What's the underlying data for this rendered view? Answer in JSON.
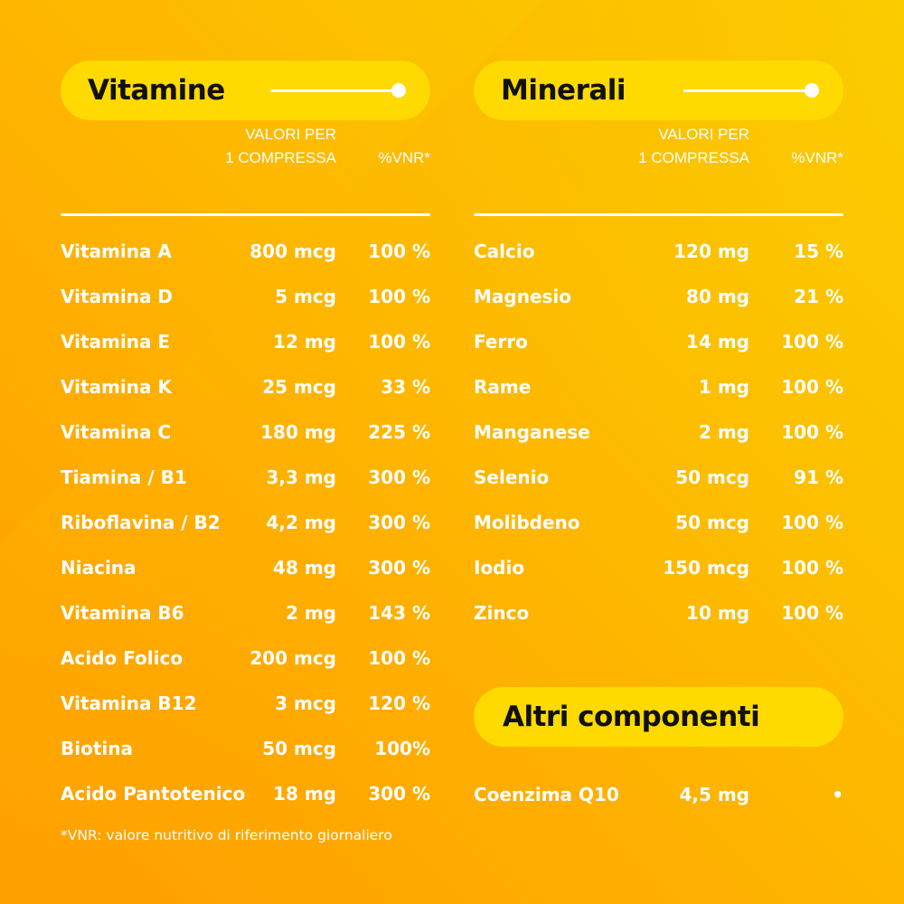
{
  "vitamine": {
    "title": "Vitamine",
    "header": {
      "valori_line1": "VALORI PER",
      "valori_line2": "1 COMPRESSA",
      "vnr": "%VNR*"
    },
    "rows": [
      {
        "name": "Vitamina A",
        "amount": "800 mcg",
        "vnr": "100 %"
      },
      {
        "name": "Vitamina D",
        "amount": "5 mcg",
        "vnr": "100 %"
      },
      {
        "name": "Vitamina E",
        "amount": "12 mg",
        "vnr": "100 %"
      },
      {
        "name": "Vitamina K",
        "amount": "25 mcg",
        "vnr": "33 %"
      },
      {
        "name": "Vitamina C",
        "amount": "180 mg",
        "vnr": "225 %"
      },
      {
        "name": "Tiamina / B1",
        "amount": "3,3 mg",
        "vnr": "300 %"
      },
      {
        "name": "Riboflavina / B2",
        "amount": "4,2 mg",
        "vnr": "300 %"
      },
      {
        "name": "Niacina",
        "amount": "48 mg",
        "vnr": "300 %"
      },
      {
        "name": "Vitamina B6",
        "amount": "2 mg",
        "vnr": "143 %"
      },
      {
        "name": "Acido Folico",
        "amount": "200 mcg",
        "vnr": "100 %"
      },
      {
        "name": "Vitamina B12",
        "amount": "3 mcg",
        "vnr": "120 %"
      },
      {
        "name": "Biotina",
        "amount": "50 mcg",
        "vnr": "100%"
      },
      {
        "name": "Acido Pantotenico",
        "amount": "18 mg",
        "vnr": "300 %"
      }
    ]
  },
  "minerali": {
    "title": "Minerali",
    "header": {
      "valori_line1": "VALORI PER",
      "valori_line2": "1 COMPRESSA",
      "vnr": "%VNR*"
    },
    "rows": [
      {
        "name": "Calcio",
        "amount": "120 mg",
        "vnr": "15 %"
      },
      {
        "name": "Magnesio",
        "amount": "80 mg",
        "vnr": "21 %"
      },
      {
        "name": "Ferro",
        "amount": "14 mg",
        "vnr": "100 %"
      },
      {
        "name": "Rame",
        "amount": "1 mg",
        "vnr": "100 %"
      },
      {
        "name": "Manganese",
        "amount": "2 mg",
        "vnr": "100 %"
      },
      {
        "name": "Selenio",
        "amount": "50 mcg",
        "vnr": "91 %"
      },
      {
        "name": "Molibdeno",
        "amount": "50 mcg",
        "vnr": "100 %"
      },
      {
        "name": "Iodio",
        "amount": "150 mcg",
        "vnr": "100 %"
      },
      {
        "name": "Zinco",
        "amount": "10 mg",
        "vnr": "100 %"
      }
    ]
  },
  "altri": {
    "title": "Altri componenti",
    "rows": [
      {
        "name": "Coenzima Q10",
        "amount": "4,5 mg",
        "vnr": "•"
      }
    ]
  },
  "footnote": "*VNR: valore nutritivo di riferimento giornaliero",
  "colors": {
    "pill": "#FFDA00",
    "bg_top_left": "#FFA500",
    "bg_top_right": "#FBCB00",
    "bg_bottom_right": "#FDC000",
    "text": "#FFFFFF",
    "title_text": "#111111"
  }
}
